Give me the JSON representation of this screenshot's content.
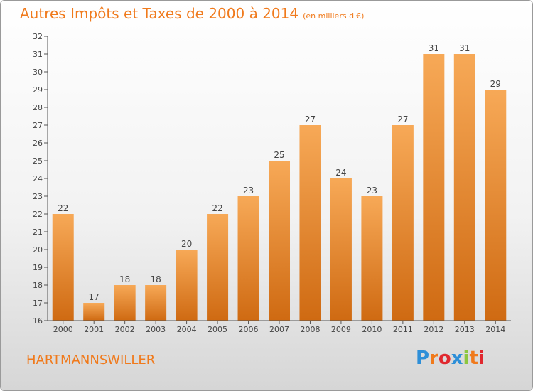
{
  "title": "Autres Impôts et Taxes de 2000 à 2014",
  "unit_note": "(en milliers d'€)",
  "commune": "HARTMANNSWILLER",
  "logo": {
    "text": "Proxiti",
    "letter_colors": [
      "#2e8fd8",
      "#f07a1c",
      "#e0282f",
      "#2e8fd8",
      "#8cc63f",
      "#f07a1c",
      "#e0282f"
    ]
  },
  "colors": {
    "bar_top": "#f7a957",
    "bar_bottom": "#cf6a12",
    "title": "#f07a1c"
  },
  "chart_data": {
    "type": "bar",
    "categories": [
      "2000",
      "2001",
      "2002",
      "2003",
      "2004",
      "2005",
      "2006",
      "2007",
      "2008",
      "2009",
      "2010",
      "2011",
      "2012",
      "2013",
      "2014"
    ],
    "values": [
      22,
      17,
      18,
      18,
      20,
      22,
      23,
      25,
      27,
      24,
      23,
      27,
      31,
      31,
      29
    ],
    "ylim": [
      16,
      32
    ],
    "yticks": [
      16,
      17,
      18,
      19,
      20,
      21,
      22,
      23,
      24,
      25,
      26,
      27,
      28,
      29,
      30,
      31,
      32
    ],
    "grid": false,
    "data_labels": true
  }
}
